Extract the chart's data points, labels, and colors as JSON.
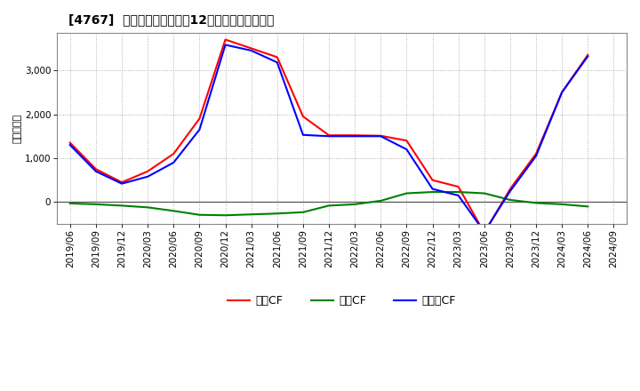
{
  "title": "[4767]  キャッシュフローの12か月移動合計の推移",
  "ylabel": "（百万円）",
  "legend_operating": "営業CF",
  "legend_investment": "投賄CF",
  "legend_free": "フリーCF",
  "x_labels": [
    "2019/06",
    "2019/09",
    "2019/12",
    "2020/03",
    "2020/06",
    "2020/09",
    "2020/12",
    "2021/03",
    "2021/06",
    "2021/09",
    "2021/12",
    "2022/03",
    "2022/06",
    "2022/09",
    "2022/12",
    "2023/03",
    "2023/06",
    "2023/09",
    "2023/12",
    "2024/03",
    "2024/06",
    "2024/09"
  ],
  "operating_cf": [
    1350,
    750,
    450,
    700,
    1100,
    1900,
    3700,
    3500,
    3300,
    1950,
    1520,
    1520,
    1510,
    1400,
    500,
    350,
    -700,
    300,
    1100,
    2500,
    3350,
    null
  ],
  "investment_cf": [
    -30,
    -50,
    -80,
    -120,
    -200,
    -290,
    -300,
    -280,
    -260,
    -230,
    -80,
    -50,
    30,
    200,
    230,
    230,
    200,
    50,
    -20,
    -50,
    -100,
    null
  ],
  "free_cf": [
    1300,
    700,
    420,
    580,
    900,
    1650,
    3580,
    3450,
    3180,
    1530,
    1500,
    1500,
    1500,
    1200,
    300,
    150,
    -680,
    250,
    1050,
    2500,
    3320,
    null
  ],
  "operating_color": "#ff0000",
  "investment_color": "#008000",
  "free_color": "#0000ff",
  "ylim_min": -500,
  "ylim_max": 3850,
  "yticks": [
    0,
    1000,
    2000,
    3000
  ],
  "background_color": "#ffffff",
  "grid_color": "#999999"
}
